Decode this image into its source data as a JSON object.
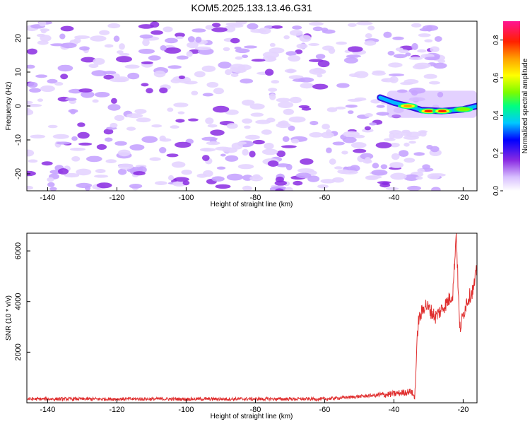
{
  "chart_data": [
    {
      "type": "heatmap",
      "title": "KOM5.2025.133.13.46.G31",
      "xlabel": "Height of straight line (km)",
      "ylabel": "Frequency (Hz)",
      "xlim": [
        -146,
        -16
      ],
      "ylim": [
        -25,
        25
      ],
      "x_ticks": [
        -140,
        -120,
        -100,
        -80,
        -60,
        -40,
        -20
      ],
      "y_ticks": [
        -20,
        -10,
        0,
        10,
        20
      ],
      "colorbar": {
        "label": "Normalized spectral amplitude",
        "range": [
          0,
          0.9
        ],
        "ticks": [
          "0.0",
          "0.2",
          "0.4",
          "0.6",
          "0.8"
        ],
        "colormap": [
          "#ffffff",
          "#d8c0ff",
          "#8a2be2",
          "#0000ff",
          "#00c8ff",
          "#00ff80",
          "#7cfc00",
          "#ffff00",
          "#ffa000",
          "#ff2000",
          "#ff1493"
        ]
      },
      "strong_signal": {
        "x_start": -42,
        "x_end": -16,
        "freq_start": 2,
        "freq_end": 0,
        "peaks": [
          {
            "x": -36,
            "freq": 0,
            "amplitude": 0.75
          },
          {
            "x": -30,
            "freq": -1.5,
            "amplitude": 0.85
          },
          {
            "x": -26,
            "freq": -1.5,
            "amplitude": 0.85
          },
          {
            "x": -20,
            "freq": -1,
            "amplitude": 0.45
          }
        ]
      },
      "noise_region": {
        "x_start": -146,
        "x_end": -40,
        "max_amplitude": 0.15
      }
    },
    {
      "type": "line",
      "xlabel": "Height of straight line (km)",
      "ylabel": "SNR (10 * v/v)",
      "xlim": [
        -146,
        -16
      ],
      "ylim": [
        0,
        6700
      ],
      "x_ticks": [
        -140,
        -120,
        -100,
        -80,
        -60,
        -40,
        -20
      ],
      "y_ticks": [
        2000,
        4000,
        6000
      ],
      "line_color": "#e03030",
      "key_points": [
        {
          "x": -146,
          "y": 150
        },
        {
          "x": -60,
          "y": 150
        },
        {
          "x": -40,
          "y": 350
        },
        {
          "x": -35,
          "y": 450
        },
        {
          "x": -34,
          "y": 200
        },
        {
          "x": -33,
          "y": 3200
        },
        {
          "x": -31,
          "y": 3900
        },
        {
          "x": -28,
          "y": 3400
        },
        {
          "x": -25,
          "y": 3900
        },
        {
          "x": -23,
          "y": 4300
        },
        {
          "x": -22,
          "y": 6700
        },
        {
          "x": -21,
          "y": 2900
        },
        {
          "x": -19,
          "y": 4000
        },
        {
          "x": -17,
          "y": 4500
        },
        {
          "x": -16,
          "y": 5300
        }
      ]
    }
  ]
}
